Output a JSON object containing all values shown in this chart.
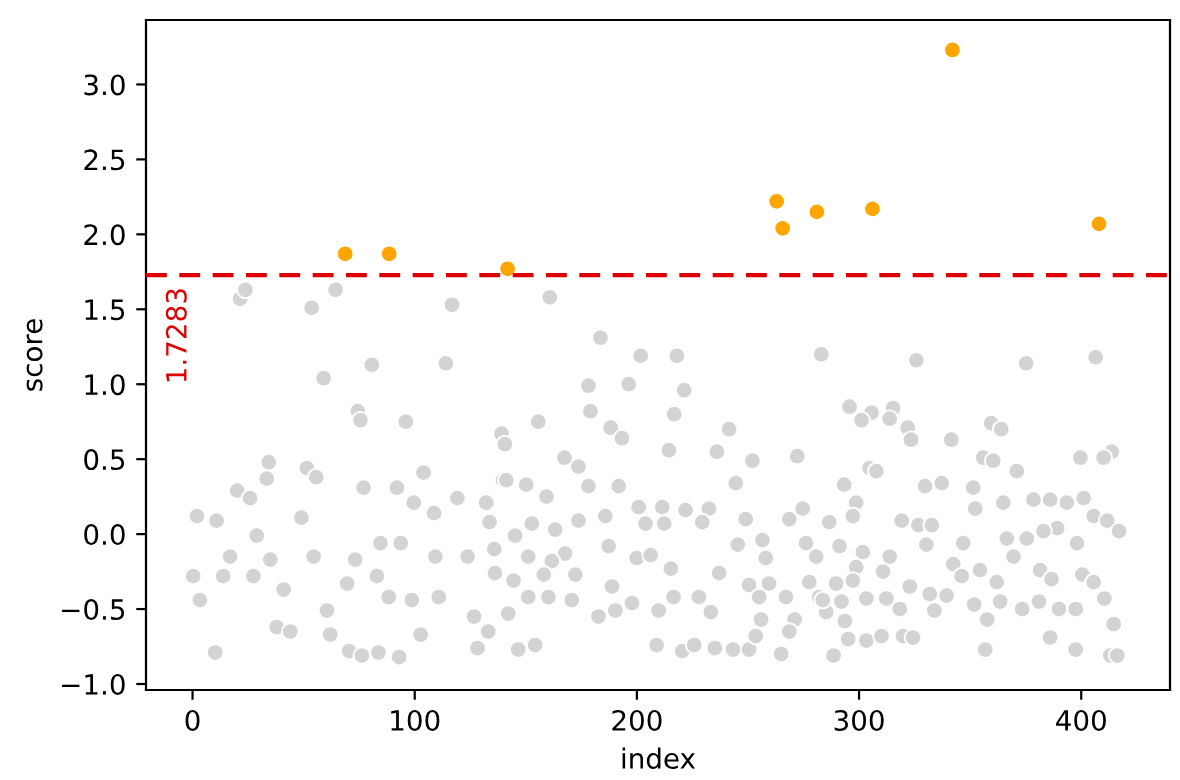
{
  "chart_data": {
    "type": "scatter",
    "xlabel": "index",
    "ylabel": "score",
    "xlim": [
      -20.95,
      439.95
    ],
    "ylim": [
      -1.04,
      3.43
    ],
    "xticks": [
      0,
      100,
      200,
      300,
      400
    ],
    "yticks": [
      {
        "value": -1.0,
        "label": "−1.0"
      },
      {
        "value": -0.5,
        "label": "−0.5"
      },
      {
        "value": 0.0,
        "label": "0.0"
      },
      0.5,
      {
        "value": 1.0,
        "label": "1.0"
      },
      1.5,
      {
        "value": 2.0,
        "label": "2.0"
      },
      2.5,
      {
        "value": 3.0,
        "label": "3.0"
      }
    ],
    "grid": false,
    "legend": false,
    "marker": "circle",
    "ref_lines": [
      {
        "axis": "y",
        "value": 1.7283,
        "label": "1.7283",
        "color": "#dd0000",
        "line_style": "dashed"
      }
    ],
    "series": [
      {
        "color": "#d3d3d3",
        "x": [
          21.4,
          23.8,
          53.6,
          64.4,
          116.8,
          59,
          80.7,
          114,
          74.4,
          75.6,
          96,
          34.3,
          51.5,
          55.7,
          33.4,
          104,
          20.1,
          2,
          10.2,
          0.3,
          3.3,
          16.9,
          27.4,
          37.9,
          41,
          44,
          49,
          54.5,
          60.5,
          62,
          69.6,
          73.2,
          77,
          83,
          70.5,
          76.2,
          83.7,
          84.6,
          88.3,
          92,
          93.7,
          93,
          99.6,
          98.7,
          102.7,
          108.7,
          109.3,
          110.8,
          119.2,
          123.8,
          126.7,
          128.3,
          132.2,
          133.7,
          135.8,
          139.7,
          25.9,
          10.8,
          13.8,
          28.9,
          35,
          160.8,
          183.6,
          201.7,
          218,
          283,
          178.2,
          196.3,
          221.3,
          179.1,
          216.8,
          155.6,
          188.2,
          193.3,
          139.1,
          140.6,
          241.5,
          236,
          214.4,
          167.4,
          173.7,
          252,
          272.2,
          141.2,
          150.2,
          178.2,
          191.8,
          244.5,
          159.3,
          200.8,
          211.4,
          221.9,
          232.4,
          274.6,
          249,
          268.6,
          286.6,
          152.7,
          173.7,
          185.8,
          163.2,
          145.2,
          203.9,
          212.3,
          229.4,
          245.4,
          256.5,
          276.1,
          187.3,
          199.9,
          167.7,
          151.1,
          206.2,
          258,
          280.7,
          215.3,
          237,
          136.1,
          161.7,
          158.1,
          144.5,
          172.3,
          188.8,
          259.5,
          250.5,
          277.6,
          151.1,
          160.2,
          170.7,
          182.7,
          190.3,
          197.8,
          209.8,
          216.5,
          227.9,
          233.3,
          255,
          267.1,
          282.1,
          142.1,
          133.1,
          255.9,
          271,
          285.2,
          146.6,
          154.2,
          208.9,
          220.4,
          225.8,
          235.1,
          243.3,
          250.5,
          253.5,
          265,
          268.6,
          325.8,
          375.2,
          406.5,
          295.7,
          305.6,
          301.1,
          315.3,
          313.8,
          321.9,
          323.4,
          341.5,
          359.5,
          364,
          304.7,
          307.8,
          355.9,
          360.4,
          371,
          399.6,
          413.7,
          410.1,
          329.7,
          337.2,
          351.4,
          293.3,
          298.7,
          352.3,
          364.9,
          378.5,
          386,
          393.5,
          401.1,
          405.6,
          411.7,
          417,
          319.2,
          326.7,
          332.7,
          389.2,
          383,
          297.2,
          330.3,
          346.9,
          366.5,
          375.5,
          398.1,
          291.2,
          301.7,
          313.8,
          342.4,
          369.5,
          298.7,
          310.8,
          346.2,
          354.4,
          381.5,
          400.5,
          289.7,
          297.2,
          322.8,
          331.8,
          339.4,
          362,
          386.6,
          405.6,
          283.7,
          292.1,
          303.3,
          312.3,
          318.3,
          333.9,
          351.8,
          363.5,
          373.4,
          381,
          390,
          397.5,
          410.4,
          293.6,
          357.7,
          414.6,
          295.1,
          303.3,
          310.1,
          319.8,
          324.3,
          386,
          288.5,
          356.8,
          397.5,
          413.1,
          416.2
        ],
        "values": [
          1.57,
          1.63,
          1.51,
          1.63,
          1.53,
          1.04,
          1.13,
          1.14,
          0.82,
          0.76,
          0.75,
          0.48,
          0.44,
          0.38,
          0.37,
          0.41,
          0.29,
          0.12,
          -0.79,
          -0.28,
          -0.44,
          -0.15,
          -0.28,
          -0.62,
          -0.37,
          -0.65,
          0.11,
          -0.15,
          -0.51,
          -0.67,
          -0.33,
          -0.17,
          0.31,
          -0.28,
          -0.78,
          -0.81,
          -0.79,
          -0.06,
          -0.42,
          0.31,
          -0.06,
          -0.82,
          0.21,
          -0.44,
          -0.67,
          0.14,
          -0.15,
          -0.42,
          0.24,
          -0.15,
          -0.55,
          -0.76,
          0.21,
          0.08,
          -0.1,
          0.36,
          0.24,
          0.09,
          -0.28,
          -0.01,
          -0.17,
          1.58,
          1.31,
          1.19,
          1.19,
          1.2,
          0.99,
          1.0,
          0.96,
          0.82,
          0.8,
          0.75,
          0.71,
          0.64,
          0.67,
          0.6,
          0.7,
          0.55,
          0.56,
          0.51,
          0.45,
          0.49,
          0.52,
          0.36,
          0.33,
          0.32,
          0.32,
          0.34,
          0.25,
          0.18,
          0.18,
          0.16,
          0.17,
          0.17,
          0.1,
          0.1,
          0.08,
          0.07,
          0.09,
          0.12,
          0.03,
          -0.01,
          0.07,
          0.07,
          0.08,
          -0.07,
          -0.04,
          -0.06,
          -0.08,
          -0.16,
          -0.13,
          -0.15,
          -0.14,
          -0.16,
          -0.15,
          -0.23,
          -0.26,
          -0.26,
          -0.18,
          -0.27,
          -0.31,
          -0.27,
          -0.35,
          -0.33,
          -0.34,
          -0.32,
          -0.42,
          -0.42,
          -0.44,
          -0.55,
          -0.51,
          -0.46,
          -0.51,
          -0.42,
          -0.42,
          -0.52,
          -0.42,
          -0.42,
          -0.42,
          -0.53,
          -0.65,
          -0.57,
          -0.57,
          -0.52,
          -0.77,
          -0.74,
          -0.74,
          -0.78,
          -0.74,
          -0.76,
          -0.77,
          -0.77,
          -0.68,
          -0.8,
          -0.65,
          1.16,
          1.14,
          1.18,
          0.85,
          0.81,
          0.76,
          0.84,
          0.77,
          0.71,
          0.63,
          0.63,
          0.74,
          0.7,
          0.44,
          0.42,
          0.51,
          0.49,
          0.42,
          0.51,
          0.55,
          0.51,
          0.32,
          0.34,
          0.31,
          0.33,
          0.21,
          0.17,
          0.21,
          0.23,
          0.23,
          0.21,
          0.24,
          0.12,
          0.09,
          0.02,
          0.09,
          0.06,
          0.06,
          0.04,
          0.02,
          0.12,
          -0.07,
          -0.06,
          -0.03,
          -0.03,
          -0.06,
          -0.08,
          -0.12,
          -0.15,
          -0.2,
          -0.15,
          -0.22,
          -0.25,
          -0.28,
          -0.24,
          -0.24,
          -0.27,
          -0.33,
          -0.31,
          -0.35,
          -0.4,
          -0.41,
          -0.32,
          -0.3,
          -0.32,
          -0.44,
          -0.45,
          -0.43,
          -0.43,
          -0.5,
          -0.51,
          -0.47,
          -0.45,
          -0.5,
          -0.45,
          -0.5,
          -0.5,
          -0.43,
          -0.58,
          -0.57,
          -0.6,
          -0.7,
          -0.71,
          -0.68,
          -0.68,
          -0.69,
          -0.69,
          -0.81,
          -0.77,
          -0.77,
          -0.81,
          -0.81
        ]
      },
      {
        "color": "#ffa500",
        "x": [
          68.7,
          88.5,
          141.8,
          262.9,
          265.6,
          281,
          306,
          342,
          408
        ],
        "values": [
          1.87,
          1.87,
          1.77,
          2.22,
          2.04,
          2.15,
          2.17,
          3.23,
          2.07
        ]
      }
    ]
  }
}
